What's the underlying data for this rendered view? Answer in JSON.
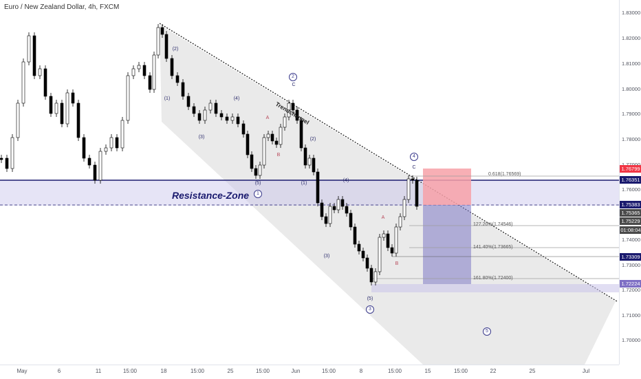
{
  "header": {
    "title": "Euro / New Zealand Dollar, 4h, FXCM"
  },
  "price_axis": {
    "ticks": [
      "1.83000",
      "1.82000",
      "1.81000",
      "1.80000",
      "1.79000",
      "1.78000",
      "1.77000",
      "1.76000",
      "1.74000",
      "1.73000",
      "1.72000",
      "1.71000",
      "1.70000"
    ],
    "tags": [
      {
        "text": "1.76799",
        "color": "#f23645"
      },
      {
        "text": "1.76351",
        "color": "#1a1a6e"
      },
      {
        "text": "1.75383",
        "color": "#1a1a6e"
      },
      {
        "text": "1.75365",
        "color": "#4a4a4a"
      },
      {
        "text": "1.75229",
        "color": "#4a4a4a"
      },
      {
        "text": "01:08:04",
        "color": "#4a4a4a"
      },
      {
        "text": "1.73309",
        "color": "#1a1a6e"
      },
      {
        "text": "1.72224",
        "color": "#7e6fc4"
      }
    ]
  },
  "time_axis": {
    "labels": [
      "May",
      "6",
      "11",
      "15:00",
      "18",
      "15:00",
      "25",
      "15:00",
      "Jun",
      "15:00",
      "8",
      "15:00",
      "15",
      "15:00",
      "22",
      "25",
      "Jul"
    ]
  },
  "annotations": {
    "resistance_zone": "Resistance-Zone",
    "trendchannel": "Trendchannel",
    "fib_0618": "0.618(1.76569)",
    "fib_1272": "127.20%(1.74546)",
    "fib_1414": "141.40%(1.73665)",
    "fib_1618": "161.80%(1.72400)",
    "waves_text": [
      "(2)",
      "(1)",
      "(3)",
      "(4)",
      "(5)",
      "(1)",
      "(2)",
      "(4)",
      "(3)",
      "(5)",
      "A",
      "B",
      "A",
      "B",
      "C",
      "C"
    ],
    "waves_circled": [
      "1",
      "2",
      "3",
      "4",
      "5"
    ]
  },
  "colors": {
    "up_candle": "#ffffff",
    "down_candle": "#000000",
    "resistance_line": "#1a1a6e",
    "zone_fill": "#c8c3ea",
    "channel_fill": "#d9d9d9",
    "stop_box": "#f7a1a8",
    "target_box": "#7e78c4"
  }
}
